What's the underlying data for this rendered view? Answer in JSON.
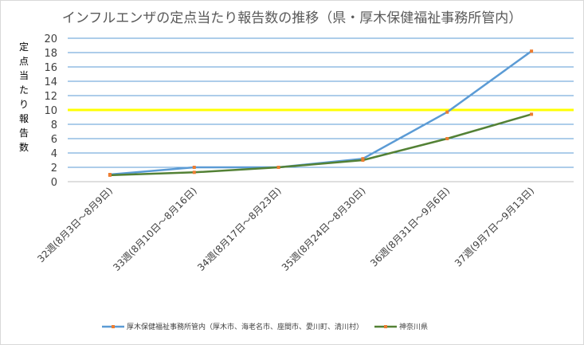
{
  "chart_data": {
    "type": "line",
    "title": "インフルエンザの定点当たり報告数の推移（県・厚木保健福祉事務所管内）",
    "ylabel": "定点当たり報告数",
    "xlabel": "",
    "categories": [
      "32週(8月3日～8月9日)",
      "33週(8月10日～8月16日)",
      "34週(8月17日～8月23日)",
      "35週(8月24日～8月30日)",
      "36週(8月31日～9月6日)",
      "37週(9月7日～9月13日)"
    ],
    "ylim": [
      0,
      20
    ],
    "yticks": [
      0,
      2,
      4,
      6,
      8,
      10,
      12,
      14,
      16,
      18,
      20
    ],
    "grid": true,
    "reference_line": {
      "value": 10,
      "color": "#ffff00"
    },
    "series": [
      {
        "name": "厚木保健福祉事務所管内（厚木市、海老名市、座間市、愛川町、清川村）",
        "values": [
          1.0,
          2.0,
          2.0,
          3.2,
          9.7,
          18.2
        ],
        "color": "#5b9bd5",
        "marker_color": "#ed7d31"
      },
      {
        "name": "神奈川県",
        "values": [
          0.9,
          1.3,
          2.0,
          3.0,
          6.0,
          9.4
        ],
        "color": "#538135",
        "marker_color": "#ed7d31"
      }
    ],
    "legend_position": "bottom"
  }
}
